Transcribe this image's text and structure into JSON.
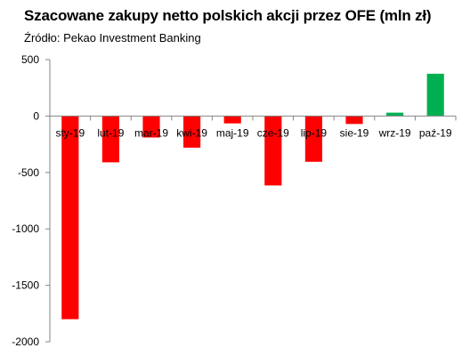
{
  "chart_data": {
    "type": "bar",
    "title": "Szacowane zakupy netto polskich akcji przez OFE (mln zł)",
    "subtitle": "Źródło: Pekao Investment Banking",
    "xlabel": "",
    "ylabel": "",
    "ylim": [
      -2000,
      500
    ],
    "yticks": [
      500,
      0,
      -500,
      -1000,
      -1500,
      -2000
    ],
    "categories": [
      "sty-19",
      "lut-19",
      "mar-19",
      "kwi-19",
      "maj-19",
      "cze-19",
      "lip-19",
      "sie-19",
      "wrz-19",
      "paź-19"
    ],
    "values": [
      -1800,
      -410,
      -190,
      -280,
      -65,
      -615,
      -405,
      -70,
      30,
      375
    ],
    "grid": false,
    "legend": "none",
    "colors": {
      "negative": "#ff0000",
      "positive": "#00b050"
    }
  }
}
